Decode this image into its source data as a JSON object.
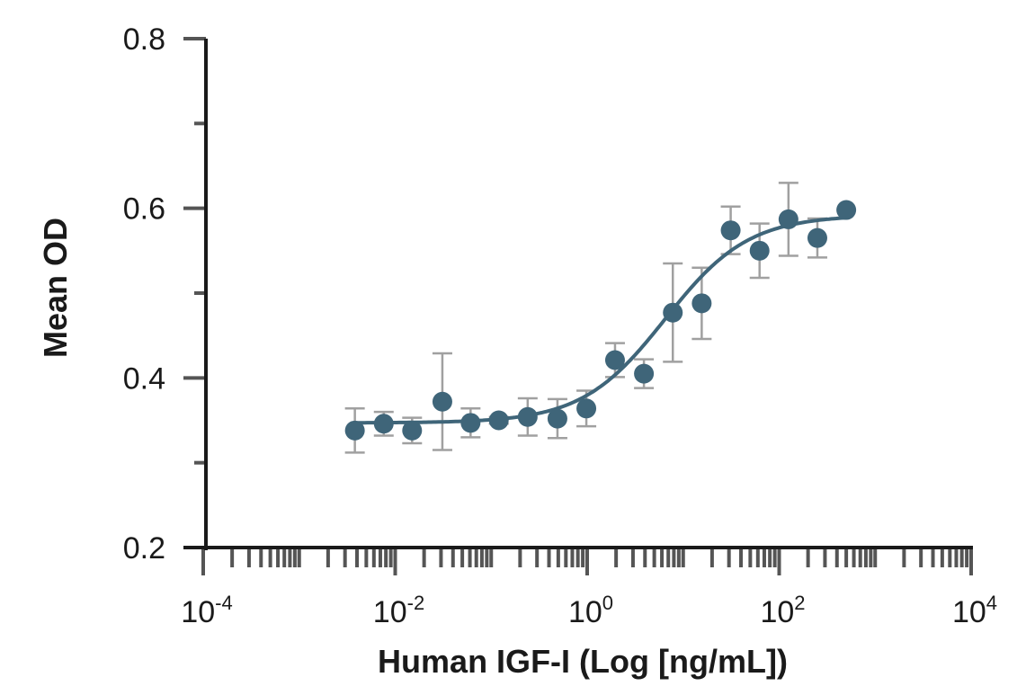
{
  "chart_data": {
    "type": "scatter",
    "title": "",
    "xlabel": "Human IGF-I (Log [ng/mL])",
    "ylabel": "Mean OD",
    "xscale": "log",
    "xlim": [
      0.0001,
      10000
    ],
    "ylim": [
      0.2,
      0.8
    ],
    "x_tick_labels": [
      {
        "value": 0.0001,
        "base": "10",
        "exp": "-4"
      },
      {
        "value": 0.01,
        "base": "10",
        "exp": "-2"
      },
      {
        "value": 1,
        "base": "10",
        "exp": "0"
      },
      {
        "value": 100,
        "base": "10",
        "exp": "2"
      },
      {
        "value": 10000,
        "base": "10",
        "exp": "4"
      }
    ],
    "y_ticks": [
      0.2,
      0.3,
      0.4,
      0.5,
      0.6,
      0.7,
      0.8
    ],
    "y_tick_labels": [
      {
        "value": 0.2,
        "label": "0.2"
      },
      {
        "value": 0.4,
        "label": "0.4"
      },
      {
        "value": 0.6,
        "label": "0.6"
      },
      {
        "value": 0.8,
        "label": "0.8"
      }
    ],
    "grid": false,
    "series": [
      {
        "name": "Mean OD",
        "color": "#3f6579",
        "error_color": "#a0a0a0",
        "x": [
          0.0038,
          0.0076,
          0.015,
          0.031,
          0.061,
          0.12,
          0.24,
          0.49,
          0.98,
          1.95,
          3.9,
          7.8,
          15.6,
          31.25,
          62.5,
          125,
          250,
          500
        ],
        "y": [
          0.338,
          0.346,
          0.338,
          0.372,
          0.347,
          0.35,
          0.354,
          0.352,
          0.364,
          0.421,
          0.405,
          0.477,
          0.488,
          0.574,
          0.55,
          0.587,
          0.565,
          0.598
        ],
        "error": [
          0.026,
          0.014,
          0.015,
          0.057,
          0.017,
          0.004,
          0.022,
          0.023,
          0.021,
          0.02,
          0.017,
          0.058,
          0.042,
          0.028,
          0.032,
          0.043,
          0.023,
          0.0
        ]
      }
    ],
    "fit": {
      "type": "4PL",
      "bottom": 0.347,
      "top": 0.592,
      "ec50": 6.5,
      "hill": 1.0
    }
  }
}
